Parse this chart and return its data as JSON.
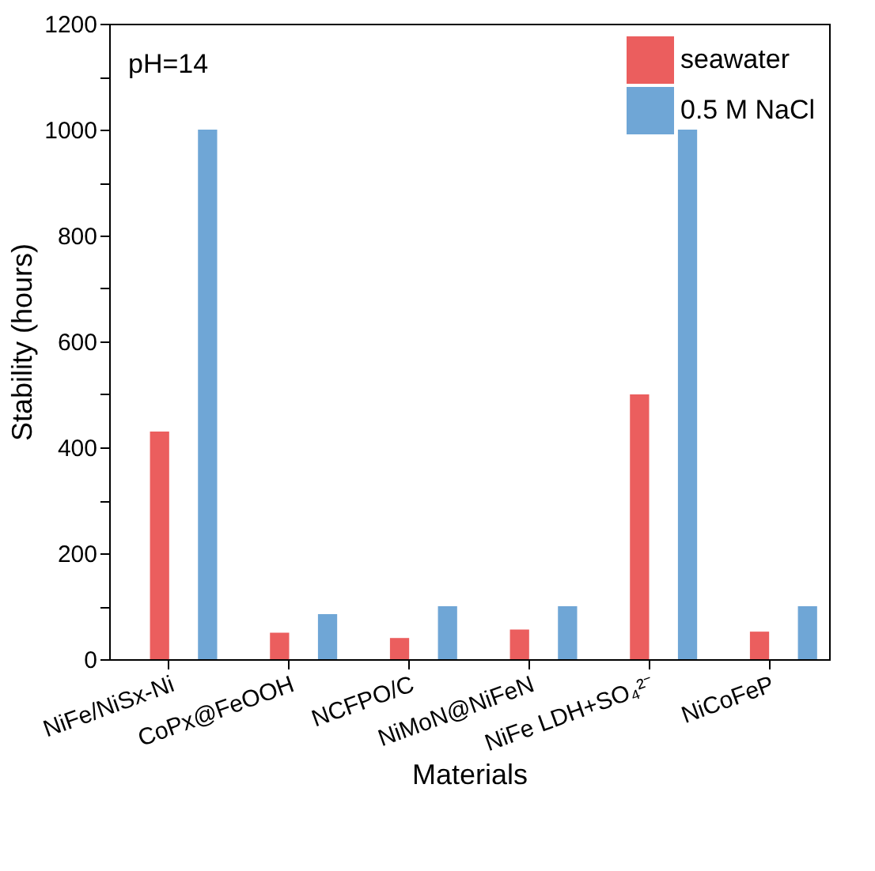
{
  "chart_data": {
    "type": "bar",
    "xlabel": "Materials",
    "ylabel": "Stability (hours)",
    "categories": [
      "NiFe/NiSx-Ni",
      "CoPx@FeOOH",
      "NCFPO/C",
      "NiMoN@NiFeN",
      "NiFe LDH+SO₄²⁻",
      "NiCoFeP"
    ],
    "series": [
      {
        "name": "seawater",
        "color": "#eb5e5e",
        "values": [
          430,
          50,
          40,
          56,
          500,
          52
        ]
      },
      {
        "name": "0.5 M NaCl",
        "color": "#6fa6d6",
        "values": [
          1000,
          85,
          100,
          100,
          1000,
          100
        ]
      }
    ],
    "ylim": [
      0,
      1200
    ],
    "yticks": [
      0,
      {
        "value": 100,
        "label": null
      },
      200,
      {
        "value": 300,
        "label": null
      },
      400,
      {
        "value": 500,
        "label": null
      },
      600,
      {
        "value": 700,
        "label": null
      },
      800,
      {
        "value": 900,
        "label": null
      },
      1000,
      {
        "value": 1100,
        "label": null
      },
      1200
    ],
    "annotations": [
      "pH=14"
    ],
    "legend": "top right",
    "grid": false
  }
}
